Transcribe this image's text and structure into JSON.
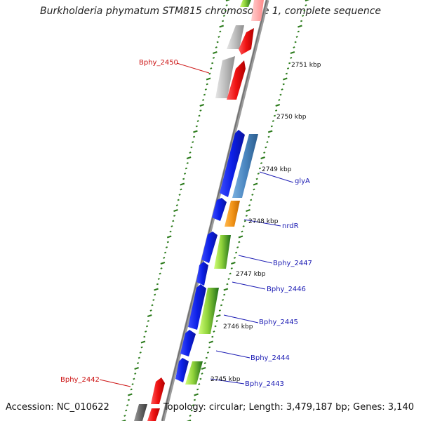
{
  "title": "Burkholderia phymatum STM815 chromosome 1, complete sequence",
  "footer": {
    "accession": "Accession: NC_010622",
    "summary": "Topology: circular; Length: 3,479,187 bp; Genes: 3,140"
  },
  "colors": {
    "gene_blue": "#0c1fe6",
    "gene_red": "#ee1111",
    "gene_gray": "#bdbdbd",
    "gene_dark_gray": "#666666",
    "gene_steel": "#4a86c0",
    "gene_orange": "#f29418",
    "gene_green_light": "#a6e24a",
    "gene_green_dark": "#2f8a22",
    "label_blue": "#1a1ab3",
    "label_red": "#cc1111",
    "scale_green": "#2a7a1a",
    "backbone": "#888888"
  },
  "scale": {
    "tick_labels": [
      "2751 kbp",
      "2750 kbp",
      "2749 kbp",
      "2748 kbp",
      "2747 kbp",
      "2746 kbp",
      "2745 kbp"
    ]
  },
  "genes": [
    {
      "name": "glyA",
      "strand": "-",
      "color": "steel",
      "labeled": true
    },
    {
      "name": "nrdR",
      "strand": "-",
      "color": "orange",
      "labeled": true
    },
    {
      "name": "Bphy_2447",
      "strand": "-",
      "color": "green",
      "labeled": true
    },
    {
      "name": "Bphy_2446",
      "strand": "+",
      "color": "blue",
      "labeled": true
    },
    {
      "name": "Bphy_2445",
      "strand": "-",
      "color": "green",
      "labeled": true
    },
    {
      "name": "Bphy_2444",
      "strand": "+",
      "color": "blue",
      "labeled": true
    },
    {
      "name": "Bphy_2443",
      "strand": "-",
      "color": "green",
      "labeled": true
    },
    {
      "name": "Bphy_2450",
      "strand": "+",
      "color": "gray",
      "labeled": true
    },
    {
      "name": "Bphy_2442",
      "strand": "-",
      "color": "red",
      "labeled": true
    }
  ]
}
